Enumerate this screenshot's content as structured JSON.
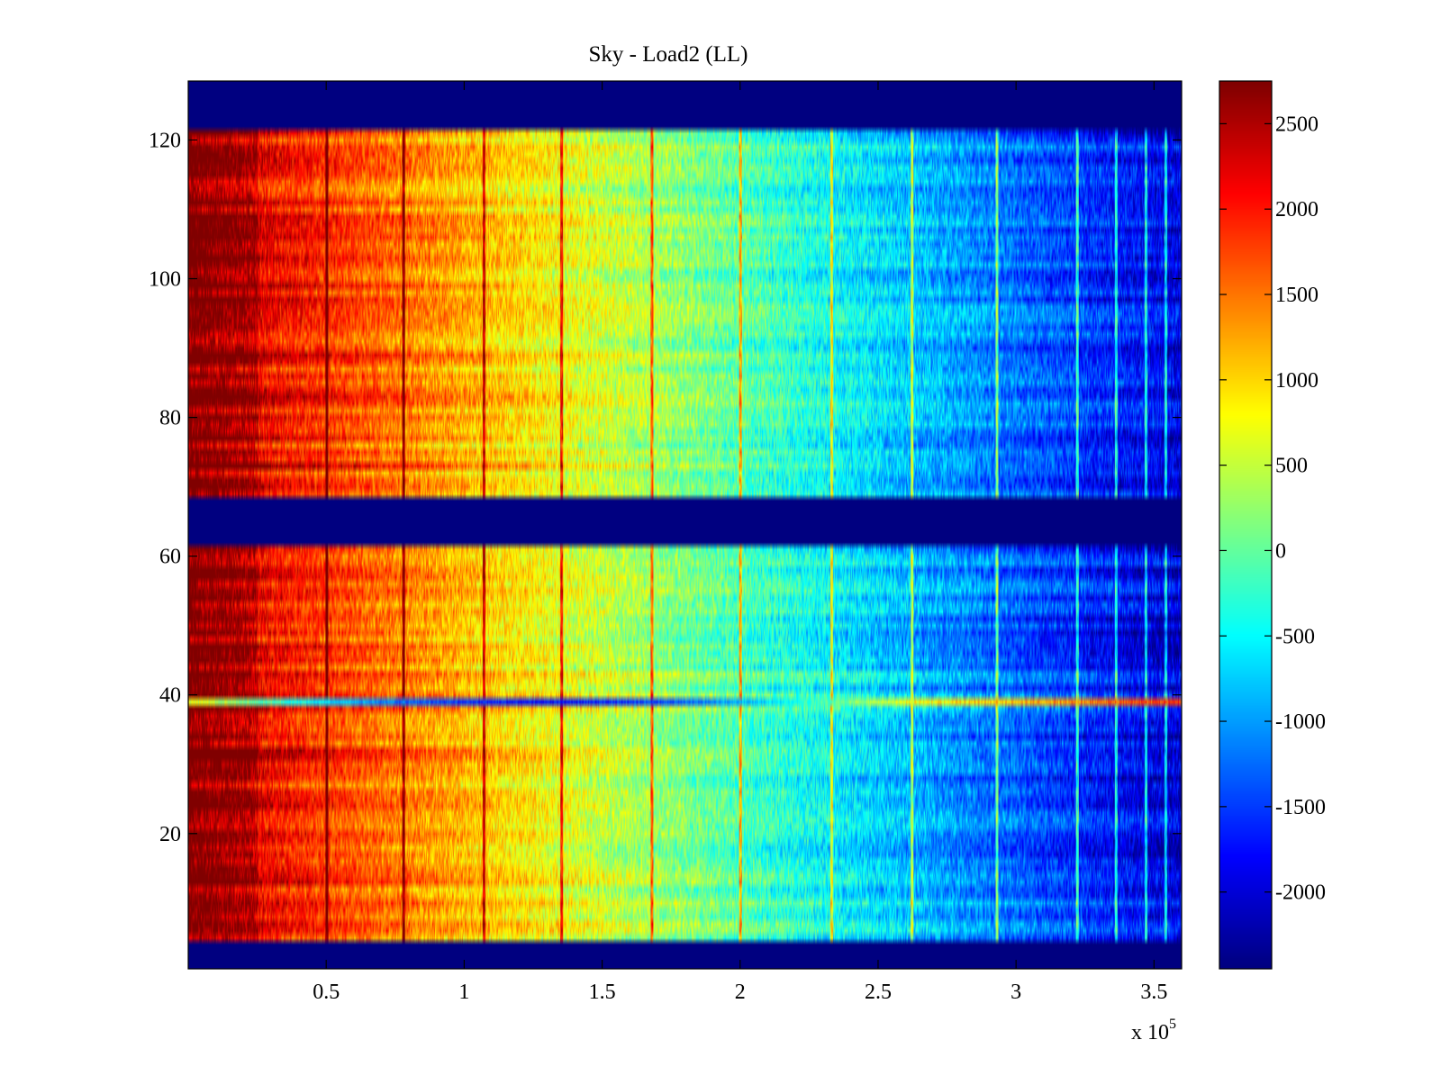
{
  "chart_data": {
    "type": "heatmap",
    "title": "Sky - Load2 (LL)",
    "xlabel": "",
    "ylabel": "",
    "x_range": [
      0,
      360000
    ],
    "y_range": [
      0.5,
      128.5
    ],
    "x_tick_values": [
      0.5,
      1,
      1.5,
      2,
      2.5,
      3,
      3.5
    ],
    "x_tick_labels": [
      "0.5",
      "1",
      "1.5",
      "2",
      "2.5",
      "3",
      "3.5"
    ],
    "x_multiplier_label": "x 10",
    "x_multiplier_exponent": "5",
    "y_tick_values": [
      20,
      40,
      60,
      80,
      100,
      120
    ],
    "y_tick_labels": [
      "20",
      "40",
      "60",
      "80",
      "100",
      "120"
    ],
    "colorbar": {
      "colormap": "jet",
      "range": [
        -2450,
        2750
      ],
      "tick_values": [
        2500,
        2000,
        1500,
        1000,
        500,
        0,
        -500,
        -1000,
        -1500,
        -2000
      ],
      "tick_labels": [
        "2500",
        "2000",
        "1500",
        "1000",
        "500",
        "0",
        "-500",
        "-1000",
        "-1500",
        "-2000"
      ]
    },
    "description_of_field": {
      "left_edge_value": 2600,
      "right_edge_value": -2000,
      "empty_channel_value": -2450,
      "empty_channel_rows": [
        [
          1,
          4
        ],
        [
          62,
          68
        ],
        [
          122,
          128
        ]
      ],
      "anomalous_row": 39,
      "vertical_stripe_x": [
        50000,
        78000,
        107000,
        135000,
        168000,
        200000,
        233000,
        262000,
        293000,
        322000,
        336000,
        347000,
        354000
      ]
    }
  }
}
